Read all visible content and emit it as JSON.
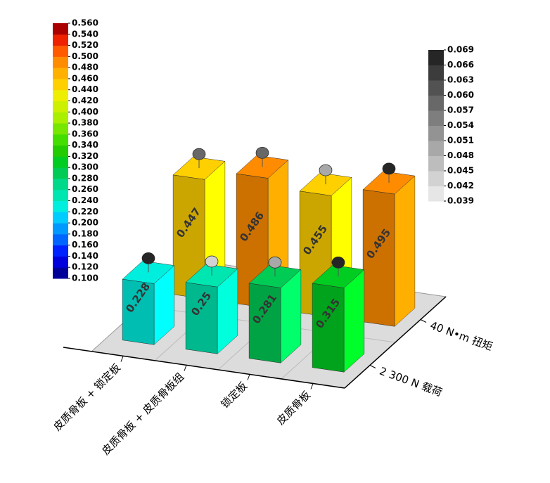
{
  "chart_data": {
    "type": "bar3d",
    "categories": [
      "皮质骨板 + 锁定板",
      "皮质骨板 + 皮质骨板组",
      "锁定板",
      "皮质骨板"
    ],
    "series": [
      {
        "name": "2 300 N 载荷",
        "values": [
          0.228,
          0.25,
          0.281,
          0.315
        ],
        "errors": [
          0.066,
          0.045,
          0.048,
          0.066
        ]
      },
      {
        "name": "40 N•m 扭矩",
        "values": [
          0.447,
          0.486,
          0.455,
          0.495
        ],
        "errors": [
          0.057,
          0.057,
          0.048,
          0.069
        ]
      }
    ],
    "zlim": [
      0,
      0.6
    ],
    "colorbar": {
      "lim": [
        0.1,
        0.56
      ],
      "ticks": [
        {
          "value": 0.1,
          "label": "0.100"
        },
        {
          "value": 0.12,
          "label": "0.120"
        },
        {
          "value": 0.14,
          "label": "0.140"
        },
        {
          "value": 0.16,
          "label": "0.160"
        },
        {
          "value": 0.18,
          "label": "0.180"
        },
        {
          "value": 0.2,
          "label": "0.200"
        },
        {
          "value": 0.22,
          "label": "0.220"
        },
        {
          "value": 0.24,
          "label": "0.240"
        },
        {
          "value": 0.26,
          "label": "0.260"
        },
        {
          "value": 0.28,
          "label": "0.280"
        },
        {
          "value": 0.3,
          "label": "0.300"
        },
        {
          "value": 0.32,
          "label": "0.320"
        },
        {
          "value": 0.34,
          "label": "0.340"
        },
        {
          "value": 0.36,
          "label": "0.360"
        },
        {
          "value": 0.38,
          "label": "0.380"
        },
        {
          "value": 0.4,
          "label": "0.400"
        },
        {
          "value": 0.42,
          "label": "0.420"
        },
        {
          "value": 0.44,
          "label": "0.440"
        },
        {
          "value": 0.46,
          "label": "0.460"
        },
        {
          "value": 0.48,
          "label": "0.480"
        },
        {
          "value": 0.5,
          "label": "0.500"
        },
        {
          "value": 0.52,
          "label": "0.520"
        },
        {
          "value": 0.54,
          "label": "0.540"
        },
        {
          "value": 0.56,
          "label": "0.560"
        }
      ],
      "colors": [
        "#000099",
        "#0000dd",
        "#0022ff",
        "#0066ff",
        "#0099ff",
        "#00ccff",
        "#00eedd",
        "#00e6b0",
        "#00d98a",
        "#00cc55",
        "#00cc22",
        "#22cc00",
        "#44dd00",
        "#77e600",
        "#aaee00",
        "#ccf000",
        "#eeee00",
        "#ffd000",
        "#ffb000",
        "#ff8c00",
        "#ff5a00",
        "#ee2200",
        "#aa0000"
      ]
    },
    "errorbar": {
      "lim": [
        0.039,
        0.069
      ],
      "ticks": [
        0.039,
        0.042,
        0.045,
        0.048,
        0.051,
        0.054,
        0.057,
        {
          "value": 0.06,
          "label": "0.060"
        },
        0.063,
        0.066,
        0.069
      ],
      "colors": [
        "#e6e6e6",
        "#d2d2d2",
        "#bdbdbd",
        "#a8a8a8",
        "#939393",
        "#7e7e7e",
        "#686868",
        "#525252",
        "#3c3c3c",
        "#262626"
      ]
    }
  }
}
